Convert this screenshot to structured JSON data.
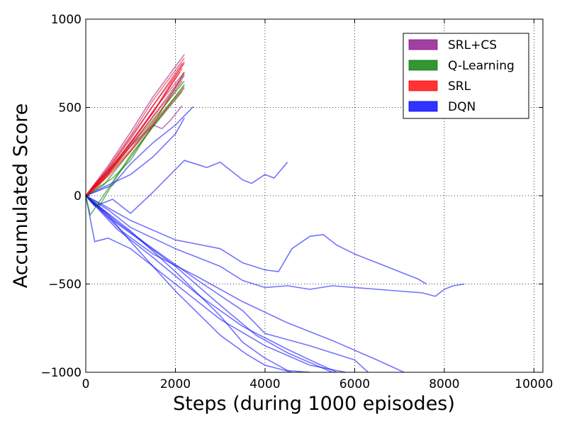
{
  "chart_data": {
    "type": "line",
    "title": "",
    "xlabel": "Steps (during 1000 episodes)",
    "ylabel": "Accumulated Score",
    "xlim": [
      0,
      10200
    ],
    "ylim": [
      -1000,
      1000
    ],
    "x_ticks": [
      0,
      2000,
      4000,
      6000,
      8000,
      10000
    ],
    "x_tick_labels": [
      "0",
      "2000",
      "4000",
      "6000",
      "8000",
      "10000"
    ],
    "y_ticks": [
      -1000,
      -500,
      0,
      500,
      1000
    ],
    "y_tick_labels": [
      "−1000",
      "−500",
      "0",
      "500",
      "1000"
    ],
    "grid": true,
    "legend_position": "top-right",
    "legend": [
      {
        "label": "SRL+CS",
        "color": "#8b0f8b"
      },
      {
        "label": "Q-Learning",
        "color": "#007a00"
      },
      {
        "label": "SRL",
        "color": "#ff0000"
      },
      {
        "label": "DQN",
        "color": "#0000ff"
      }
    ],
    "series": [
      {
        "name": "SRL+CS",
        "color": "#8b0f8b",
        "runs": [
          {
            "x": [
              0,
              500,
              1000,
              1500,
              2200
            ],
            "y": [
              0,
              170,
              360,
              560,
              800
            ]
          },
          {
            "x": [
              0,
              500,
              1000,
              1500,
              2150
            ],
            "y": [
              0,
              150,
              330,
              510,
              750
            ]
          },
          {
            "x": [
              0,
              500,
              1000,
              1500,
              2200
            ],
            "y": [
              0,
              140,
              300,
              480,
              700
            ]
          },
          {
            "x": [
              0,
              500,
              1000,
              1500,
              1700,
              1900,
              2150
            ],
            "y": [
              0,
              130,
              280,
              400,
              380,
              430,
              510
            ]
          },
          {
            "x": [
              0,
              600,
              1200,
              1800,
              2200
            ],
            "y": [
              0,
              170,
              350,
              540,
              680
            ]
          }
        ]
      },
      {
        "name": "Q-Learning",
        "color": "#007a00",
        "runs": [
          {
            "x": [
              0,
              100,
              500,
              1000,
              1500,
              2150
            ],
            "y": [
              0,
              -110,
              40,
              230,
              390,
              590
            ]
          },
          {
            "x": [
              0,
              300,
              700,
              1200,
              2200
            ],
            "y": [
              0,
              -60,
              110,
              290,
              630
            ]
          },
          {
            "x": [
              0,
              600,
              1000,
              1500,
              2200
            ],
            "y": [
              0,
              100,
              200,
              400,
              700
            ]
          },
          {
            "x": [
              0,
              500,
              1000,
              1600,
              2200
            ],
            "y": [
              0,
              120,
              280,
              460,
              650
            ]
          },
          {
            "x": [
              0,
              400,
              900,
              1400,
              2200
            ],
            "y": [
              0,
              60,
              220,
              380,
              620
            ]
          }
        ]
      },
      {
        "name": "SRL",
        "color": "#ff0000",
        "runs": [
          {
            "x": [
              0,
              500,
              1000,
              1500,
              2200
            ],
            "y": [
              0,
              160,
              340,
              540,
              780
            ]
          },
          {
            "x": [
              0,
              500,
              1000,
              1500,
              2200
            ],
            "y": [
              0,
              150,
              320,
              510,
              750
            ]
          },
          {
            "x": [
              0,
              500,
              1000,
              1500,
              2150
            ],
            "y": [
              0,
              140,
              300,
              470,
              720
            ]
          },
          {
            "x": [
              0,
              500,
              1000,
              1500,
              2200
            ],
            "y": [
              0,
              130,
              280,
              450,
              690
            ]
          },
          {
            "x": [
              0,
              500,
              1000,
              1500,
              2150
            ],
            "y": [
              0,
              120,
              260,
              420,
              650
            ]
          },
          {
            "x": [
              0,
              500,
              1000,
              1500,
              2200
            ],
            "y": [
              0,
              110,
              250,
              400,
              610
            ]
          },
          {
            "x": [
              0,
              300,
              800,
              1300,
              2100
            ],
            "y": [
              0,
              60,
              230,
              400,
              700
            ]
          },
          {
            "x": [
              0,
              400,
              900,
              1500,
              2200
            ],
            "y": [
              0,
              90,
              270,
              470,
              760
            ]
          }
        ]
      },
      {
        "name": "DQN",
        "color": "#0000ff",
        "runs": [
          {
            "x": [
              0,
              600,
              1000,
              1500,
              2000,
              2400
            ],
            "y": [
              0,
              60,
              180,
              300,
              400,
              505
            ]
          },
          {
            "x": [
              0,
              1000,
              1500,
              2000,
              2200
            ],
            "y": [
              0,
              120,
              220,
              350,
              440
            ]
          },
          {
            "x": [
              0,
              200,
              600,
              1000,
              1500,
              2200,
              2700,
              3000,
              3500,
              3700,
              4000,
              4200,
              4500
            ],
            "y": [
              0,
              -60,
              -20,
              -100,
              20,
              200,
              160,
              190,
              90,
              70,
              120,
              100,
              190
            ]
          },
          {
            "x": [
              0,
              300,
              1000,
              2000,
              3000,
              3500,
              4000,
              4300,
              4600,
              5000,
              5300,
              5600,
              6000,
              6500,
              7000,
              7400,
              7600
            ],
            "y": [
              0,
              -40,
              -140,
              -250,
              -300,
              -380,
              -420,
              -430,
              -300,
              -230,
              -220,
              -280,
              -330,
              -380,
              -430,
              -470,
              -500
            ]
          },
          {
            "x": [
              0,
              500,
              1000,
              2000,
              3000,
              3500,
              4000,
              4500,
              5000,
              5500,
              6000,
              6500,
              7000,
              7500,
              7800,
              8000,
              8200,
              8450
            ],
            "y": [
              0,
              -80,
              -180,
              -300,
              -400,
              -480,
              -520,
              -510,
              -530,
              -510,
              -520,
              -530,
              -540,
              -550,
              -570,
              -530,
              -510,
              -500
            ]
          },
          {
            "x": [
              0,
              200,
              500,
              1000,
              2000,
              3000,
              4000,
              5000,
              5800
            ],
            "y": [
              0,
              -260,
              -240,
              -300,
              -500,
              -700,
              -850,
              -960,
              -1000
            ]
          },
          {
            "x": [
              0,
              500,
              1000,
              2000,
              3000,
              3500,
              4000,
              4500,
              5000
            ],
            "y": [
              0,
              -100,
              -200,
              -430,
              -680,
              -830,
              -920,
              -990,
              -1000
            ]
          },
          {
            "x": [
              0,
              500,
              1000,
              2000,
              3000,
              3600,
              4000,
              4600
            ],
            "y": [
              0,
              -110,
              -260,
              -540,
              -790,
              -900,
              -960,
              -1000
            ]
          },
          {
            "x": [
              0,
              800,
              1500,
              2500,
              3500,
              4500,
              5500,
              6500,
              7100
            ],
            "y": [
              0,
              -200,
              -330,
              -460,
              -600,
              -720,
              -820,
              -930,
              -1000
            ]
          },
          {
            "x": [
              0,
              700,
              1500,
              2500,
              3500,
              4000,
              5000,
              6000,
              6300
            ],
            "y": [
              0,
              -150,
              -300,
              -480,
              -650,
              -780,
              -850,
              -930,
              -1000
            ]
          },
          {
            "x": [
              0,
              700,
              1500,
              2500,
              3500,
              4500,
              5000,
              5600
            ],
            "y": [
              0,
              -190,
              -350,
              -560,
              -740,
              -870,
              -930,
              -1000
            ]
          },
          {
            "x": [
              0,
              500,
              1200,
              2000,
              3000,
              3800,
              4500,
              5500
            ],
            "y": [
              0,
              -120,
              -250,
              -400,
              -620,
              -790,
              -890,
              -1000
            ]
          }
        ]
      }
    ]
  }
}
